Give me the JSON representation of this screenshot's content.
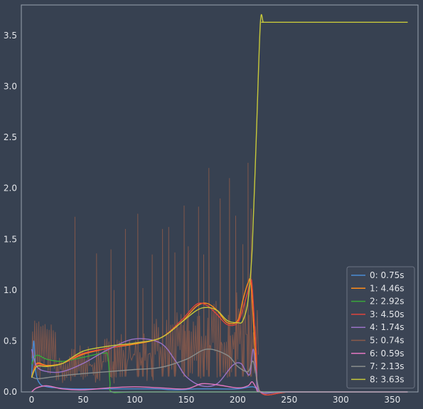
{
  "chart_data": {
    "type": "line",
    "title": "",
    "xlabel": "",
    "ylabel": "",
    "xlim": [
      -10,
      375
    ],
    "ylim": [
      0,
      3.8
    ],
    "x_ticks": [
      0,
      50,
      100,
      150,
      200,
      250,
      300,
      350
    ],
    "y_ticks": [
      0.0,
      0.5,
      1.0,
      1.5,
      2.0,
      2.5,
      3.0,
      3.5
    ],
    "x_tick_labels": [
      "0",
      "50",
      "100",
      "150",
      "200",
      "250",
      "300",
      "350"
    ],
    "y_tick_labels": [
      "0.0",
      "0.5",
      "1.0",
      "1.5",
      "2.0",
      "2.5",
      "3.0",
      "3.5"
    ],
    "grid": false,
    "legend_position": "bottom-right",
    "colors": {
      "background": "#374151",
      "axis": "#9aa3b0",
      "text": "#e5e7eb"
    },
    "series": [
      {
        "name": "0:  0.75s",
        "color": "#4b8bd4",
        "x": [
          0,
          2,
          4,
          8,
          15,
          25,
          40,
          60,
          80,
          100,
          120,
          140,
          160,
          180,
          200,
          215,
          222,
          230,
          260,
          300,
          365
        ],
        "y": [
          0.15,
          0.5,
          0.2,
          0.08,
          0.05,
          0.04,
          0.03,
          0.03,
          0.03,
          0.03,
          0.03,
          0.02,
          0.03,
          0.03,
          0.03,
          0.05,
          0.0,
          0.0,
          0.0,
          0.0,
          0.0
        ]
      },
      {
        "name": "1:  4.46s",
        "color": "#ff8c1a",
        "x": [
          0,
          5,
          15,
          30,
          50,
          75,
          100,
          125,
          145,
          160,
          170,
          180,
          190,
          200,
          205,
          210,
          213,
          217,
          222,
          250,
          300,
          365
        ],
        "y": [
          0.15,
          0.28,
          0.26,
          0.28,
          0.37,
          0.43,
          0.47,
          0.53,
          0.68,
          0.84,
          0.87,
          0.8,
          0.68,
          0.7,
          0.9,
          1.07,
          1.05,
          0.4,
          0.0,
          0.0,
          0.0,
          0.0
        ]
      },
      {
        "name": "2:  2.92s",
        "color": "#3aa83a",
        "x": [
          0,
          5,
          15,
          30,
          50,
          70,
          74,
          76,
          78,
          100,
          200,
          365
        ],
        "y": [
          0.27,
          0.36,
          0.32,
          0.3,
          0.34,
          0.38,
          0.35,
          0.1,
          0.0,
          0.0,
          0.0,
          0.0
        ]
      },
      {
        "name": "3:  4.50s",
        "color": "#e0443c",
        "x": [
          0,
          5,
          15,
          30,
          50,
          75,
          100,
          125,
          145,
          160,
          170,
          180,
          190,
          200,
          206,
          212,
          214,
          218,
          222,
          250,
          300,
          365
        ],
        "y": [
          0.14,
          0.27,
          0.25,
          0.28,
          0.38,
          0.43,
          0.48,
          0.53,
          0.7,
          0.86,
          0.85,
          0.76,
          0.66,
          0.68,
          0.85,
          1.06,
          1.04,
          0.4,
          0.0,
          0.0,
          0.0,
          0.0
        ]
      },
      {
        "name": "4:  1.74s",
        "color": "#9a72c6",
        "x": [
          0,
          5,
          15,
          30,
          50,
          75,
          100,
          125,
          140,
          150,
          165,
          180,
          195,
          203,
          208,
          212,
          215,
          218,
          222,
          250,
          365
        ],
        "y": [
          0.42,
          0.25,
          0.2,
          0.2,
          0.28,
          0.42,
          0.52,
          0.48,
          0.3,
          0.15,
          0.06,
          0.08,
          0.26,
          0.28,
          0.2,
          0.18,
          0.42,
          0.2,
          0.0,
          0.0,
          0.0
        ]
      },
      {
        "name": "5:  0.74s",
        "color": "#8c5a4a",
        "x": [
          0,
          20,
          40,
          60,
          80,
          100,
          120,
          140,
          160,
          180,
          200,
          215,
          222,
          300,
          365
        ],
        "y": [
          0.4,
          0.4,
          0.45,
          0.5,
          0.55,
          0.6,
          0.6,
          0.65,
          0.65,
          0.6,
          0.55,
          0.5,
          0.0,
          0.0,
          0.0
        ]
      },
      {
        "name": "6:  0.59s",
        "color": "#e377c2",
        "x": [
          0,
          5,
          15,
          30,
          50,
          75,
          100,
          125,
          150,
          165,
          180,
          200,
          210,
          214,
          218,
          222,
          250,
          365
        ],
        "y": [
          0.0,
          0.04,
          0.06,
          0.03,
          0.02,
          0.04,
          0.05,
          0.04,
          0.03,
          0.08,
          0.07,
          0.04,
          0.06,
          0.1,
          0.04,
          0.0,
          0.0,
          0.0
        ]
      },
      {
        "name": "7:  2.13s",
        "color": "#8a8e8c",
        "x": [
          0,
          5,
          15,
          30,
          50,
          75,
          100,
          125,
          150,
          170,
          190,
          200,
          210,
          215,
          220,
          224,
          250,
          365
        ],
        "y": [
          0.15,
          0.13,
          0.14,
          0.16,
          0.18,
          0.2,
          0.22,
          0.24,
          0.32,
          0.42,
          0.36,
          0.25,
          0.2,
          0.3,
          0.05,
          0.0,
          0.0,
          0.0
        ]
      },
      {
        "name": "8:  3.63s",
        "color": "#c7c83a",
        "x": [
          0,
          5,
          15,
          30,
          50,
          75,
          100,
          125,
          145,
          160,
          170,
          180,
          190,
          200,
          205,
          210,
          214,
          218,
          222,
          225,
          230,
          300,
          365
        ],
        "y": [
          0.14,
          0.25,
          0.25,
          0.28,
          0.4,
          0.45,
          0.48,
          0.53,
          0.68,
          0.8,
          0.83,
          0.8,
          0.7,
          0.68,
          0.7,
          0.9,
          1.4,
          2.5,
          3.62,
          3.63,
          3.63,
          3.63,
          3.63
        ]
      }
    ],
    "noise_series": {
      "color": "#8c5a4a",
      "x_range": [
        0,
        220
      ],
      "points": 220,
      "peaks": [
        [
          42,
          1.72
        ],
        [
          63,
          1.36
        ],
        [
          77,
          1.4
        ],
        [
          80,
          1.0
        ],
        [
          91,
          1.6
        ],
        [
          103,
          1.75
        ],
        [
          108,
          1.02
        ],
        [
          117,
          1.35
        ],
        [
          127,
          1.6
        ],
        [
          133,
          1.62
        ],
        [
          139,
          1.37
        ],
        [
          148,
          1.83
        ],
        [
          152,
          1.43
        ],
        [
          162,
          1.82
        ],
        [
          167,
          1.35
        ],
        [
          172,
          2.2
        ],
        [
          183,
          1.9
        ],
        [
          192,
          2.1
        ],
        [
          198,
          1.73
        ],
        [
          205,
          1.45
        ],
        [
          210,
          2.25
        ],
        [
          213,
          1.8
        ]
      ]
    }
  }
}
